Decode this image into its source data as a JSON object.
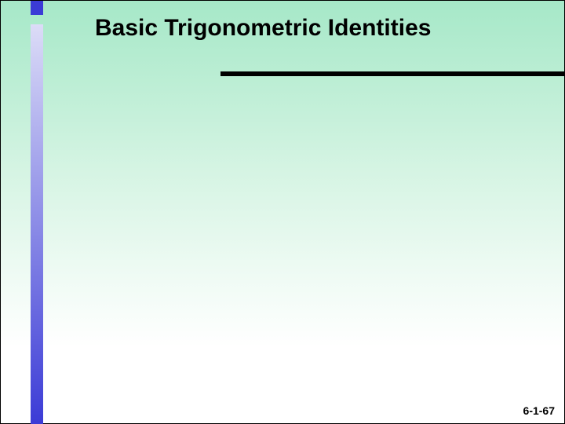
{
  "slide": {
    "title": "Basic Trigonometric Identities",
    "page_number": "6-1-67",
    "background_gradient": {
      "top": "#a6e8c8",
      "bottom": "#ffffff"
    },
    "left_bar_gradient": {
      "top": "#dcdcf7",
      "bottom": "#3b3bd6"
    },
    "underline_color": "#000000",
    "title_fontsize": 30,
    "page_num_fontsize": 14
  }
}
